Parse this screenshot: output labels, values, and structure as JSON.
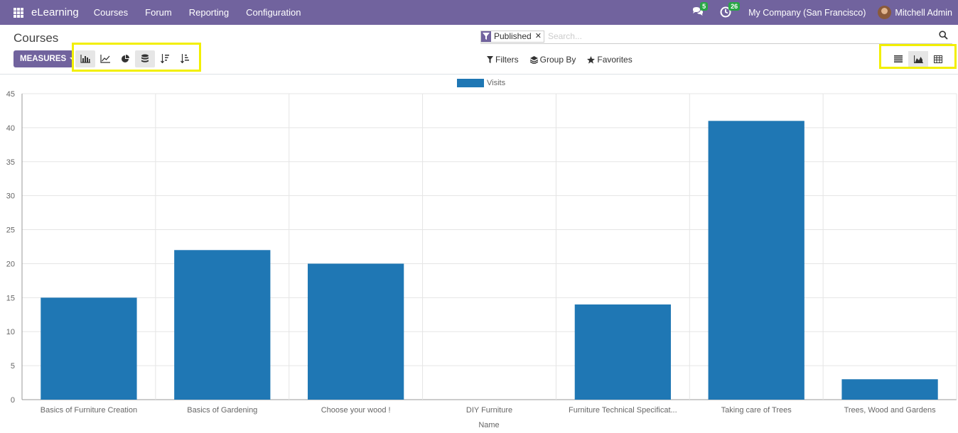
{
  "navbar": {
    "app_name": "eLearning",
    "menu": [
      "Courses",
      "Forum",
      "Reporting",
      "Configuration"
    ],
    "messages_count": "5",
    "activities_count": "26",
    "company": "My Company (San Francisco)",
    "user": "Mitchell Admin"
  },
  "page": {
    "title": "Courses",
    "measures_label": "MEASURES"
  },
  "search": {
    "facet": "Published",
    "placeholder": "Search..."
  },
  "filters": {
    "filters_label": "Filters",
    "group_by_label": "Group By",
    "favorites_label": "Favorites"
  },
  "colors": {
    "brand": "#71639e",
    "bar": "#1f77b4",
    "highlight": "#f2ef00",
    "badge": "#28a745"
  },
  "chart_data": {
    "type": "bar",
    "categories": [
      "Basics of Furniture Creation",
      "Basics of Gardening",
      "Choose your wood !",
      "DIY Furniture",
      "Furniture Technical Specificat...",
      "Taking care of Trees",
      "Trees, Wood and Gardens"
    ],
    "series": [
      {
        "name": "Visits",
        "values": [
          15,
          22,
          20,
          0,
          14,
          41,
          3
        ]
      }
    ],
    "xlabel": "Name",
    "ylabel": "",
    "ylim": [
      0,
      45
    ],
    "yticks": [
      0,
      5,
      10,
      15,
      20,
      25,
      30,
      35,
      40,
      45
    ],
    "grid": true,
    "legend_position": "top-center"
  }
}
